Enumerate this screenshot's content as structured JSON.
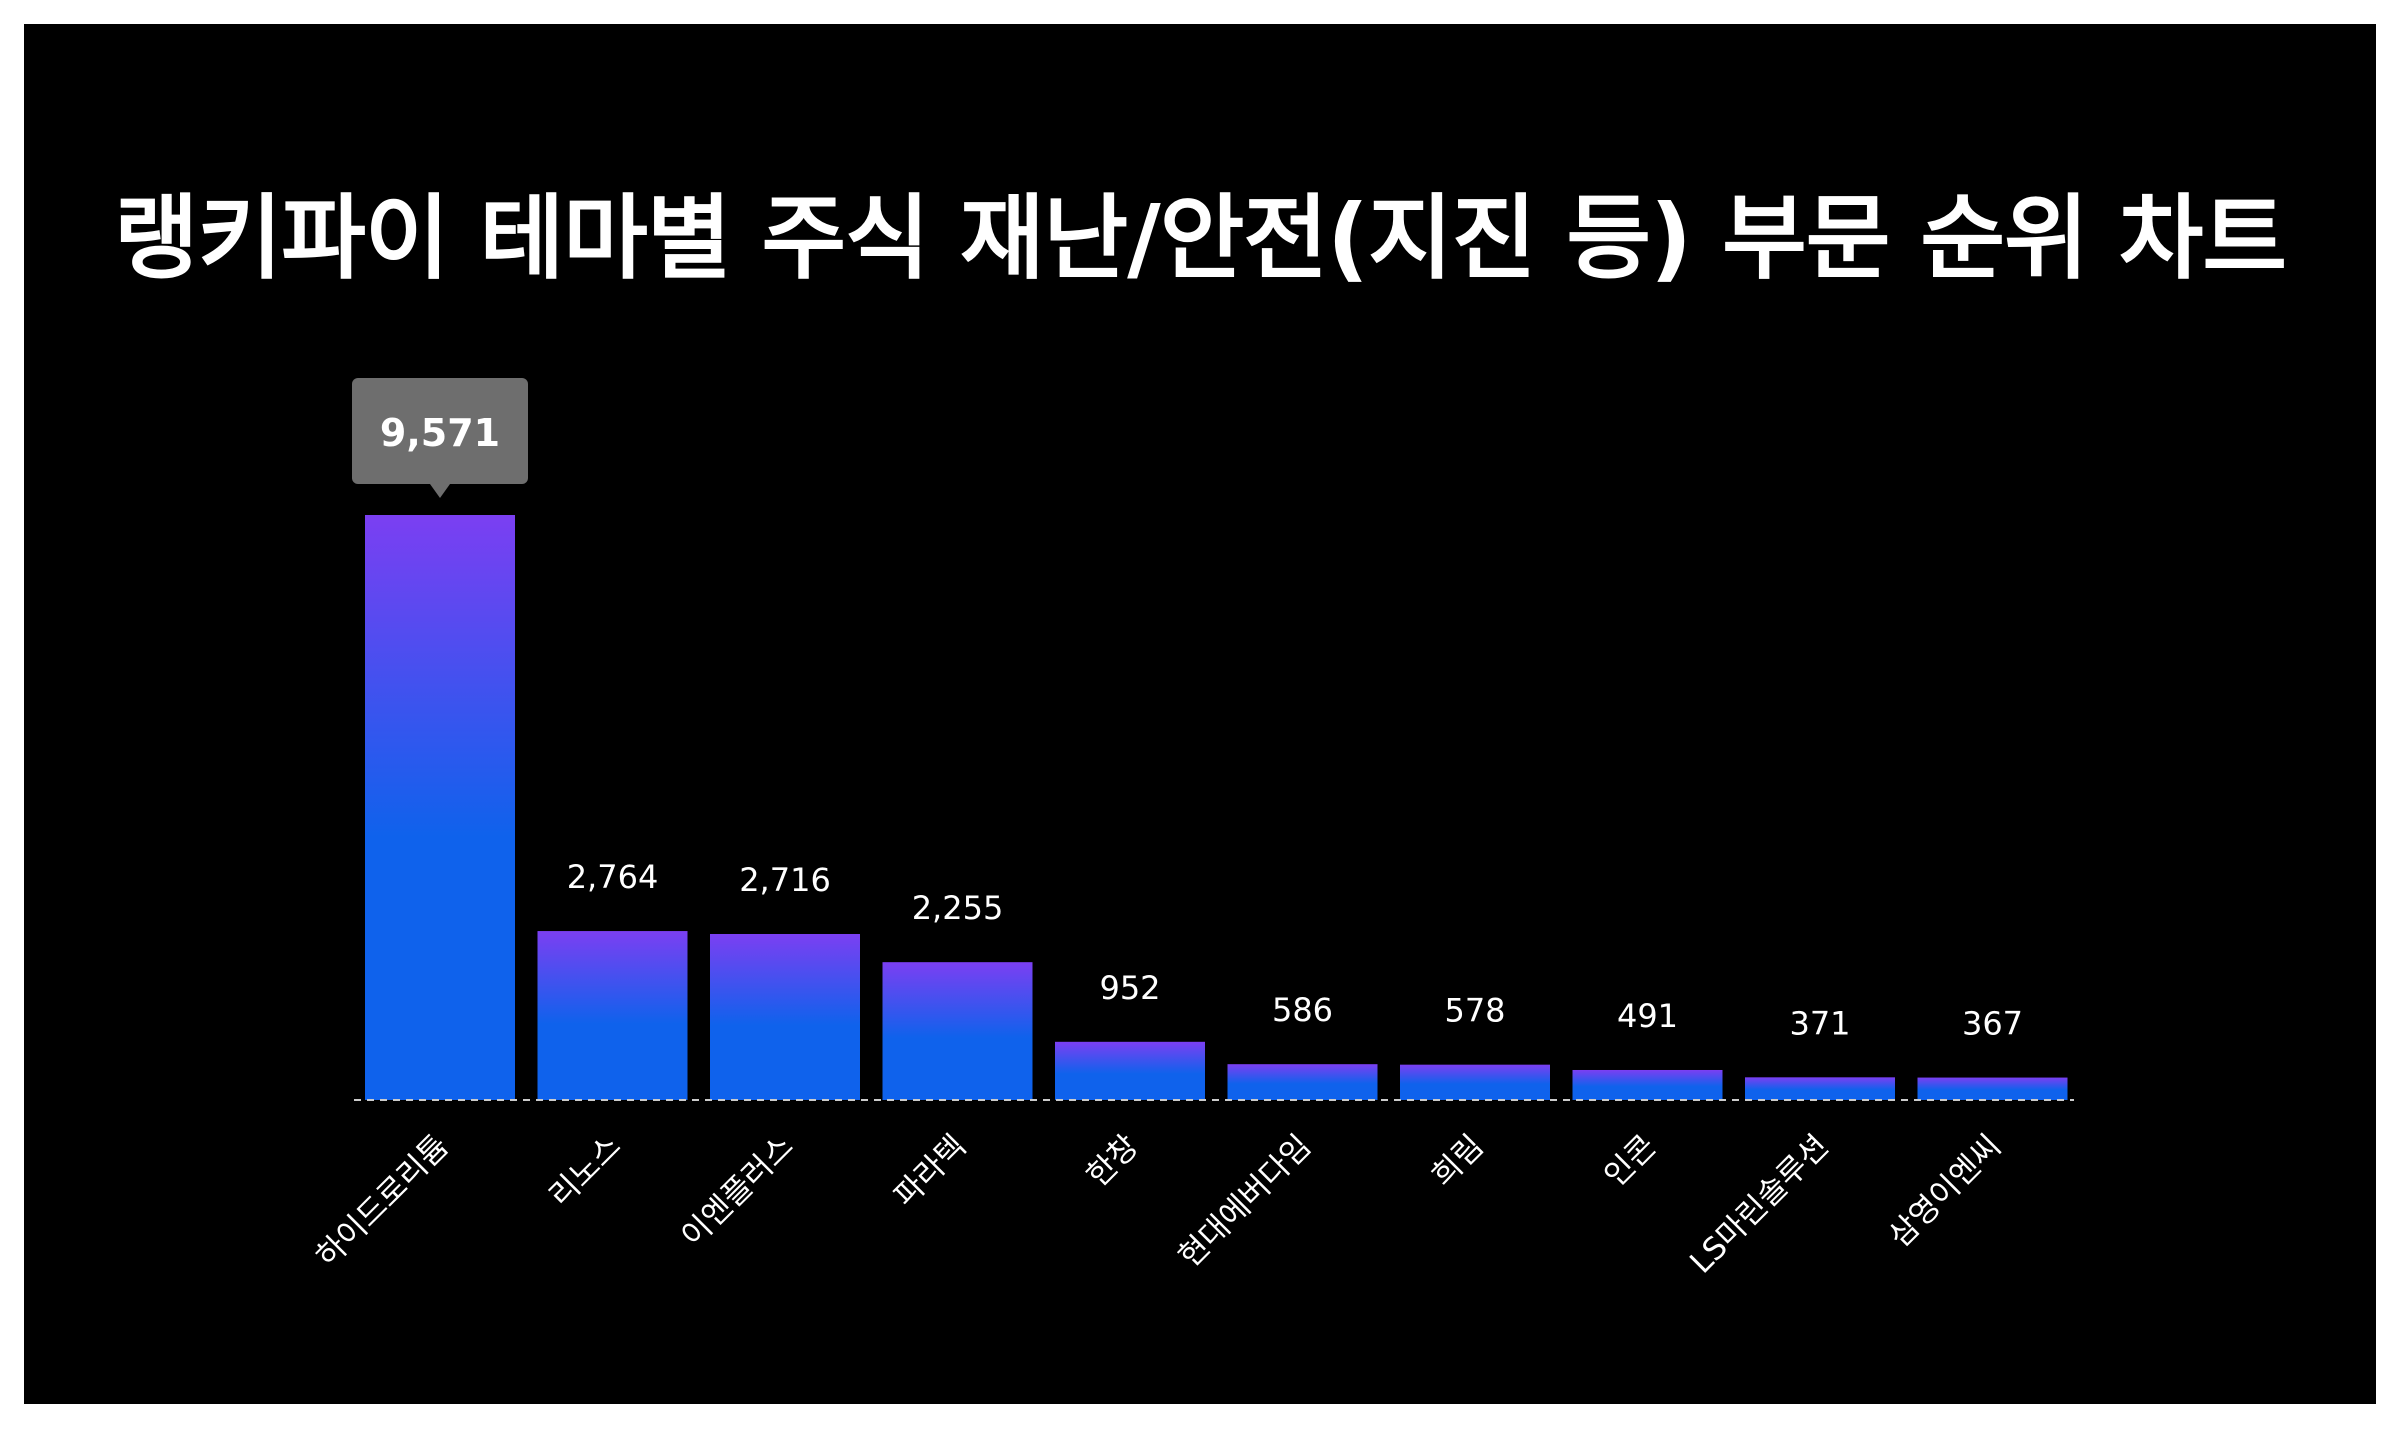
{
  "chart_data": {
    "type": "bar",
    "title": "랭키파이 테마별 주식 재난/안전(지진 등) 부문 순위 차트",
    "categories": [
      "하이드로리튬",
      "리노스",
      "이엔플러스",
      "파라텍",
      "한창",
      "현대에버다임",
      "희림",
      "인콘",
      "LS마린솔루션",
      "삼영이엔씨"
    ],
    "values": [
      9571,
      2764,
      2716,
      2255,
      952,
      586,
      578,
      491,
      371,
      367
    ],
    "value_labels": [
      "9,571",
      "2,764",
      "2,716",
      "2,255",
      "952",
      "586",
      "578",
      "491",
      "371",
      "367"
    ],
    "highlight_index": 0,
    "xlabel": "",
    "ylabel": "",
    "ylim": [
      0,
      9571
    ],
    "grid": false,
    "legend": "none",
    "colors": {
      "background": "#000000",
      "bar_top": "#7b3ff2",
      "bar_bottom": "#0f62ec",
      "text": "#ffffff",
      "tooltip_bg": "#6e6e6e",
      "baseline": "#cccccc"
    }
  }
}
